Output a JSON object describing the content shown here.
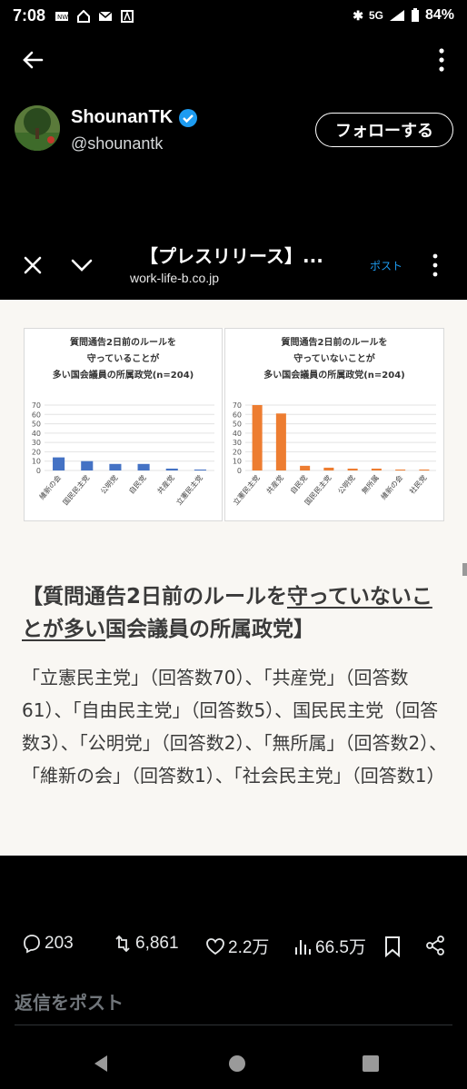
{
  "status": {
    "time": "7:08",
    "network": "5G",
    "battery": "84%"
  },
  "profile": {
    "name": "ShounanTK",
    "handle": "@shounantk",
    "follow_label": "フォローする"
  },
  "card": {
    "title": "【プレスリリース】...",
    "domain": "work-life-b.co.jp",
    "post_label": "ポスト"
  },
  "chart_data": [
    {
      "type": "bar",
      "title": [
        "質問通告2日前のルールを",
        "守っていることが",
        "多い国会議員の所属政党(n=204)"
      ],
      "categories": [
        "維新の会",
        "国民民主党",
        "公明党",
        "自民党",
        "共産党",
        "立憲民主党"
      ],
      "values": [
        14,
        10,
        7,
        7,
        2,
        1
      ],
      "ylim": [
        0,
        70
      ],
      "yticks": [
        "0",
        "10",
        "20",
        "30",
        "40",
        "50",
        "60",
        "70"
      ],
      "color": "#4472c4"
    },
    {
      "type": "bar",
      "title": [
        "質問通告2日前のルールを",
        "守っていないことが",
        "多い国会議員の所属政党(n=204)"
      ],
      "categories": [
        "立憲民主党",
        "共産党",
        "自民党",
        "国民民主党",
        "公明党",
        "無所属",
        "維新の会",
        "社民党"
      ],
      "values": [
        70,
        61,
        5,
        3,
        2,
        2,
        1,
        1
      ],
      "ylim": [
        0,
        70
      ],
      "yticks": [
        "0",
        "10",
        "20",
        "30",
        "40",
        "50",
        "60",
        "70"
      ],
      "color": "#ed7d31"
    }
  ],
  "article": {
    "heading_pre": "【質問通告2日前のルールを",
    "heading_u1": "守っていな",
    "heading_u2": "いことが多い",
    "heading_post": "国会議員の所属政党】",
    "body": "「立憲民主党」（回答数70）、「共産党」（回答数61）、「自由民主党」（回答数5）、国民民主党（回答数3）、「公明党」（回答数2）、「無所属」（回答数2）、「維新の会」（回答数1）、「社会民主党」（回答数1）"
  },
  "actions": {
    "replies": "203",
    "reposts": "6,861",
    "likes": "2.2万",
    "views": "66.5万"
  },
  "reply_placeholder": "返信をポスト"
}
